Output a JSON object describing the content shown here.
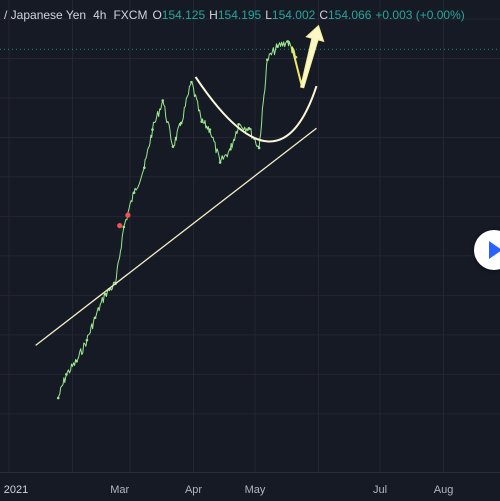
{
  "header": {
    "symbol": "/ Japanese Yen",
    "interval": "4h",
    "exchange": "FXCM",
    "ohlc": [
      {
        "k": "O",
        "v": "154.125"
      },
      {
        "k": "H",
        "v": "154.195"
      },
      {
        "k": "L",
        "v": "154.002"
      },
      {
        "k": "C",
        "v": "154.066"
      }
    ],
    "change": "+0.003 (+0.00%)"
  },
  "x_axis": {
    "labels": [
      "2021",
      "Mar",
      "Apr",
      "May",
      "Jul",
      "Aug"
    ]
  },
  "colors": {
    "background": "#161a25",
    "grid": "#242733",
    "price_line": "#9be88f",
    "trendline": "#f3efc4",
    "arc": "#fbf7d8",
    "arrow": "#f2ef9a",
    "dashed_last_price": "#26a69a"
  },
  "controls": {
    "play_icon": "play-triangle-icon"
  },
  "chart_data": {
    "type": "line",
    "title": "",
    "xlabel": "",
    "ylabel": "",
    "ylim": [
      126,
      157
    ],
    "grid": true,
    "x": [
      "2021-01-25",
      "2021-01-29",
      "2021-02-03",
      "2021-02-08",
      "2021-02-12",
      "2021-02-17",
      "2021-02-22",
      "2021-02-26",
      "2021-03-03",
      "2021-03-08",
      "2021-03-12",
      "2021-03-17",
      "2021-03-22",
      "2021-03-26",
      "2021-03-31",
      "2021-04-05",
      "2021-04-09",
      "2021-04-14",
      "2021-04-19",
      "2021-04-23",
      "2021-04-28",
      "2021-05-03",
      "2021-05-07",
      "2021-05-12",
      "2021-05-17",
      "2021-05-21"
    ],
    "series": [
      {
        "values": [
          128.2,
          130.0,
          131.0,
          132.6,
          134.3,
          136.1,
          136.9,
          141.2,
          143.8,
          145.7,
          148.6,
          150.8,
          147.3,
          149.1,
          152.2,
          149.2,
          148.6,
          146.1,
          147.1,
          149.0,
          148.7,
          147.2,
          153.9,
          154.9,
          155.3,
          154.1
        ]
      }
    ],
    "marked_points": [
      {
        "x": "2021-02-24",
        "y": 141.3
      },
      {
        "x": "2021-02-28",
        "y": 142.1
      }
    ],
    "annotations": [
      {
        "kind": "trendline",
        "points": [
          {
            "x": "2021-01-14",
            "y": 132.2
          },
          {
            "x": "2021-05-31",
            "y": 148.7
          }
        ]
      },
      {
        "kind": "arc",
        "from": {
          "x": "2021-04-02",
          "y": 152.6
        },
        "via": {
          "x": "2021-05-07",
          "y": 147.7
        },
        "to": {
          "x": "2021-05-31",
          "y": 151.9
        }
      },
      {
        "kind": "projection",
        "points": [
          {
            "x": "2021-05-19",
            "y": 154.9
          },
          {
            "x": "2021-05-24",
            "y": 151.8
          },
          {
            "x": "2021-06-01",
            "y": 156.5
          }
        ]
      }
    ]
  }
}
